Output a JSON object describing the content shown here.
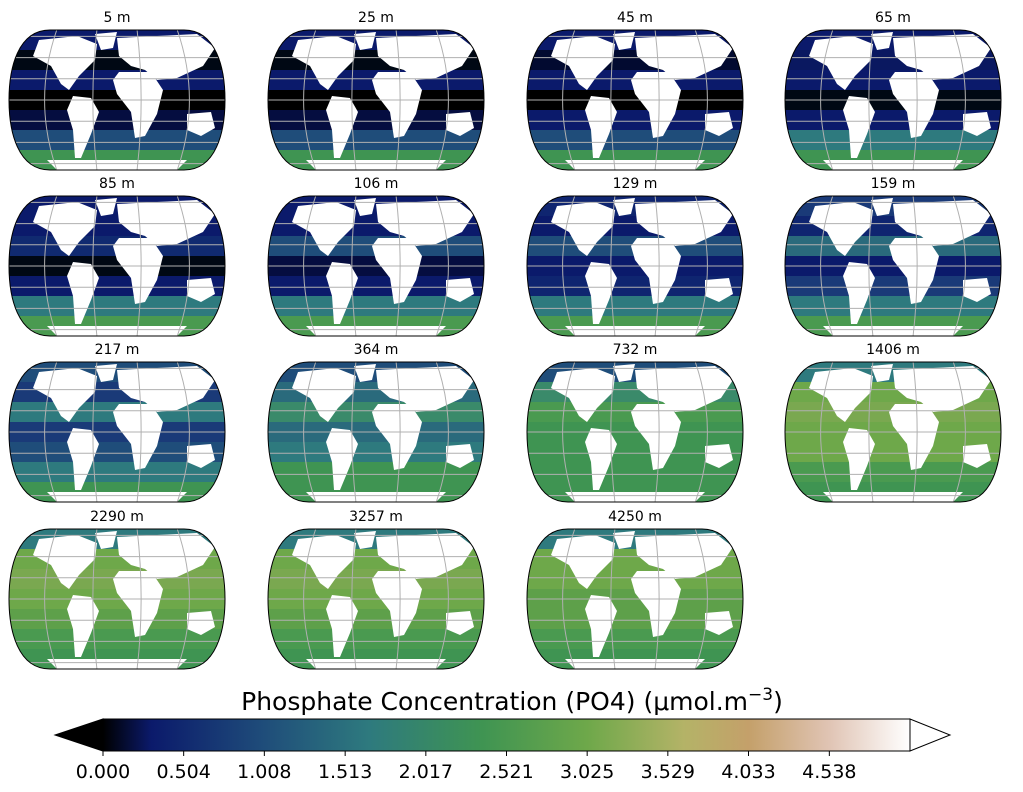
{
  "chart_data": {
    "type": "heatmap",
    "description_of_layout": "grid of map panels",
    "panels": [
      {
        "depth_label": "5 m"
      },
      {
        "depth_label": "25 m"
      },
      {
        "depth_label": "45 m"
      },
      {
        "depth_label": "65 m"
      },
      {
        "depth_label": "85 m"
      },
      {
        "depth_label": "106 m"
      },
      {
        "depth_label": "129 m"
      },
      {
        "depth_label": "159 m"
      },
      {
        "depth_label": "217 m"
      },
      {
        "depth_label": "364 m"
      },
      {
        "depth_label": "732 m"
      },
      {
        "depth_label": "1406 m"
      },
      {
        "depth_label": "2290 m"
      },
      {
        "depth_label": "3257 m"
      },
      {
        "depth_label": "4250 m"
      }
    ],
    "colorbar": {
      "title_prefix": "Phosphate Concentration (PO4) (μmol.m",
      "title_exponent": "−3",
      "title_suffix": ")",
      "tick_labels": [
        "0.000",
        "0.504",
        "1.008",
        "1.513",
        "2.017",
        "2.521",
        "3.025",
        "3.529",
        "4.033",
        "4.538"
      ],
      "range": [
        0.0,
        5.042
      ],
      "extend": "both",
      "colormap": [
        "#000000",
        "#0b1a6b",
        "#1f4d7a",
        "#2e7a7e",
        "#3f9452",
        "#6ea84a",
        "#b4b367",
        "#c4a06a",
        "#e0c4b4",
        "#ffffff"
      ]
    }
  }
}
